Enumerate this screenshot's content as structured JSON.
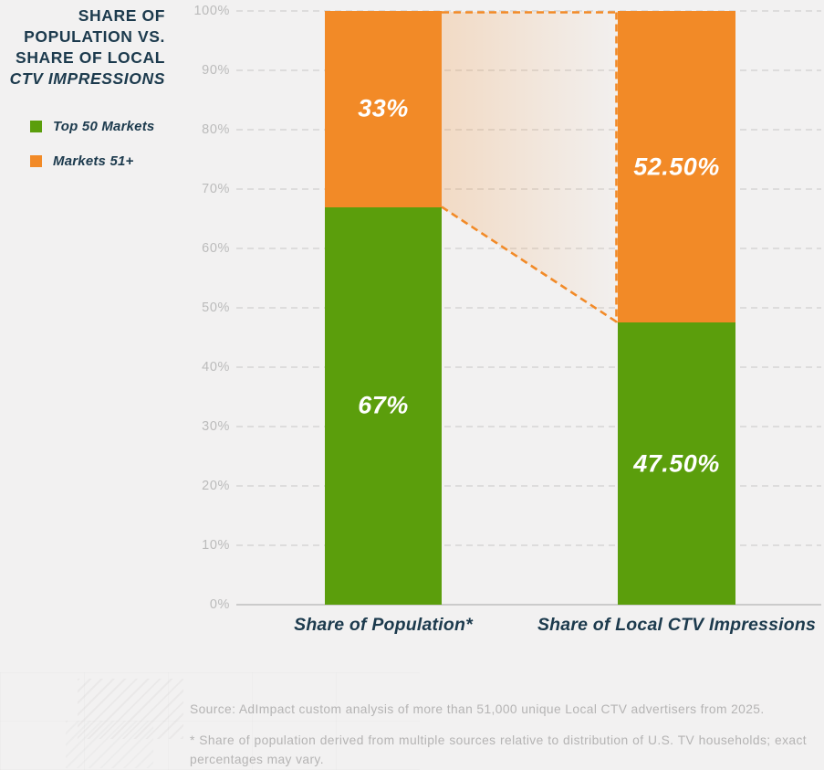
{
  "title": {
    "line1": "SHARE OF",
    "line2": "POPULATION VS.",
    "line3": "SHARE OF LOCAL",
    "line4": "CTV IMPRESSIONS"
  },
  "legend": {
    "items": [
      {
        "label": "Top 50 Markets",
        "color": "#5B9E0C"
      },
      {
        "label": "Markets 51+",
        "color": "#F28A27"
      }
    ]
  },
  "chart_data": {
    "type": "bar",
    "stacked": true,
    "title": "Share of Population vs. Share of Local CTV Impressions",
    "categories": [
      "Share of Population*",
      "Share of Local CTV Impressions"
    ],
    "series": [
      {
        "name": "Top 50 Markets",
        "color": "#5B9E0C",
        "values": [
          67,
          47.5
        ],
        "data_labels": [
          "67%",
          "47.50%"
        ]
      },
      {
        "name": "Markets 51+",
        "color": "#F28A27",
        "values": [
          33,
          52.5
        ],
        "data_labels": [
          "33%",
          "52.50%"
        ]
      }
    ],
    "y_axis": {
      "min": 0,
      "max": 100,
      "tick_step": 10,
      "tick_labels": [
        "0%",
        "10%",
        "20%",
        "30%",
        "40%",
        "50%",
        "60%",
        "70%",
        "80%",
        "90%",
        "100%"
      ],
      "gridlines": "dashed"
    },
    "legend_position": "top-left",
    "data_label_color": "#FFFFFF",
    "connector": {
      "style": "dashed",
      "color": "#F28A27",
      "fill_from": "rgba(242,138,40,0.22)",
      "fill_to": "rgba(242,138,40,0.01)"
    }
  },
  "footer": {
    "source": "Source: AdImpact custom analysis of more than 51,000 unique Local CTV advertisers from 2025.",
    "footnote": "* Share of population derived from multiple sources relative to distribution of U.S. TV households; exact percentages may vary."
  },
  "colors": {
    "background": "#F2F1F1",
    "navy": "#1C3A4D",
    "green": "#5B9E0C",
    "orange": "#F28A27",
    "grid": "#DDDCDC",
    "axis": "#CBCBCB",
    "tick_text": "#BBBBBB",
    "footer_text": "#B5B4B4"
  }
}
